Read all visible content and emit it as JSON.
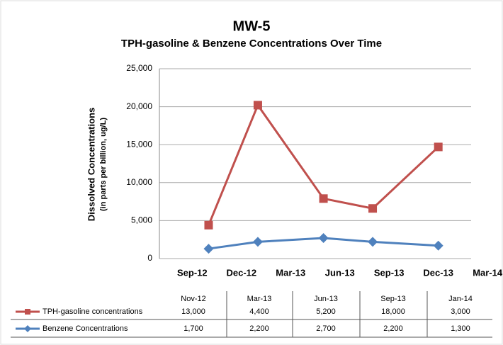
{
  "chart_data": {
    "type": "line",
    "title": "MW-5",
    "subtitle": "TPH-gasoline & Benzene Concentrations Over Time",
    "y_label": [
      "Dissolved Concentrations",
      "(in parts per billion, ug/L)"
    ],
    "x": [
      "2012-10",
      "2013-01",
      "2013-05",
      "2013-08",
      "2013-12"
    ],
    "xlim": [
      "2012-07",
      "2014-02"
    ],
    "xticks": [
      {
        "value": "2012-09",
        "label": "Sep-12"
      },
      {
        "value": "2012-12",
        "label": "Dec-12"
      },
      {
        "value": "2013-03",
        "label": "Mar-13"
      },
      {
        "value": "2013-06",
        "label": "Jun-13"
      },
      {
        "value": "2013-09",
        "label": "Sep-13"
      },
      {
        "value": "2013-12",
        "label": "Dec-13"
      },
      {
        "value": "2014-03",
        "label": "Mar-14"
      }
    ],
    "ylim": [
      0,
      25000
    ],
    "yticks": [
      {
        "value": 0,
        "label": "0"
      },
      {
        "value": 5000,
        "label": "5,000"
      },
      {
        "value": 10000,
        "label": "10,000"
      },
      {
        "value": 15000,
        "label": "15,000"
      },
      {
        "value": 20000,
        "label": "20,000"
      },
      {
        "value": 25000,
        "label": "25,000"
      }
    ],
    "grid": true,
    "series": [
      {
        "name": "TPH-gasoline concentrations",
        "color": "#c0504d",
        "marker": "square",
        "values": [
          4400,
          20200,
          7900,
          6600,
          14700
        ]
      },
      {
        "name": "Benzene Concentrations",
        "color": "#4f81bd",
        "marker": "diamond",
        "values": [
          1300,
          2200,
          2700,
          2200,
          1700
        ]
      }
    ]
  },
  "table": {
    "columns": [
      "Nov-12",
      "Mar-13",
      "Jun-13",
      "Sep-13",
      "Jan-14"
    ],
    "rows": [
      [
        "13,000",
        "4,400",
        "5,200",
        "18,000",
        "3,000"
      ],
      [
        "1,700",
        "2,200",
        "2,700",
        "2,200",
        "1,300"
      ]
    ]
  }
}
